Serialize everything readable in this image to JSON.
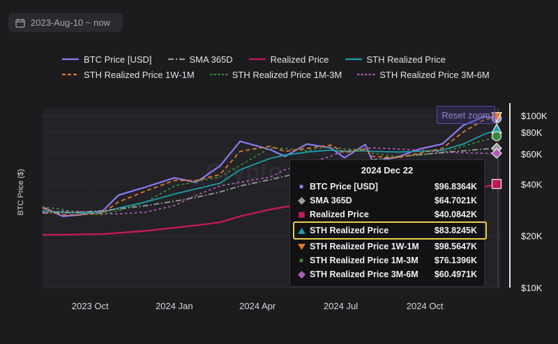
{
  "date_range": {
    "label": "2023-Aug-10 ~ now"
  },
  "reset_zoom": "Reset zoom",
  "watermark": "Crypto",
  "legend_rows": [
    [
      {
        "name": "BTC Price [USD]",
        "color": "#8b7df0",
        "style": "solid"
      },
      {
        "name": "SMA 365D",
        "color": "#9a9a9a",
        "style": "dashdot"
      },
      {
        "name": "Realized Price",
        "color": "#c2185b",
        "style": "solid"
      },
      {
        "name": "STH Realized Price",
        "color": "#1b9fa8",
        "style": "solid"
      }
    ],
    [
      {
        "name": "STH Realized Price 1W-1M",
        "color": "#e07b2a",
        "style": "dashed"
      },
      {
        "name": "STH Realized Price 1M-3M",
        "color": "#3a8a3a",
        "style": "dotted"
      },
      {
        "name": "STH Realized Price 3M-6M",
        "color": "#b05ab5",
        "style": "dotted"
      }
    ]
  ],
  "tooltip": {
    "title": "2024 Dec 22",
    "rows": [
      {
        "name": "BTC Price [USD]",
        "value": "$96.8364K",
        "marker": "dot",
        "color": "#8b7df0"
      },
      {
        "name": "SMA 365D",
        "value": "$64.7021K",
        "marker": "diamond",
        "color": "#9a9a9a"
      },
      {
        "name": "Realized Price",
        "value": "$40.0842K",
        "marker": "square",
        "color": "#c2185b"
      },
      {
        "name": "STH Realized Price",
        "value": "$83.8245K",
        "marker": "triangle-up",
        "color": "#1b9fa8",
        "highlight": true
      },
      {
        "name": "STH Realized Price 1W-1M",
        "value": "$98.5647K",
        "marker": "triangle-down",
        "color": "#e07b2a"
      },
      {
        "name": "STH Realized Price 1M-3M",
        "value": "$76.1396K",
        "marker": "dot",
        "color": "#3a8a3a"
      },
      {
        "name": "STH Realized Price 3M-6M",
        "value": "$60.4971K",
        "marker": "diamond",
        "color": "#b05ab5"
      }
    ]
  },
  "chart_data": {
    "type": "line",
    "ylabel": "BTC Price ($)",
    "y_scale": "log",
    "ylim": [
      10000,
      110000
    ],
    "y_ticks": [
      {
        "value": 10000,
        "label": "$10K"
      },
      {
        "value": 20000,
        "label": "$20K"
      },
      {
        "value": 40000,
        "label": "$40K"
      },
      {
        "value": 60000,
        "label": "$60K"
      },
      {
        "value": 80000,
        "label": "$80K"
      },
      {
        "value": 100000,
        "label": "$100K"
      }
    ],
    "xlim": [
      "2023-08-10",
      "2024-12-23"
    ],
    "x_ticks": [
      {
        "date": "2023-10-01",
        "label": "2023 Oct"
      },
      {
        "date": "2024-01-01",
        "label": "2024 Jan"
      },
      {
        "date": "2024-04-01",
        "label": "2024 Apr"
      },
      {
        "date": "2024-07-01",
        "label": "2024 Jul"
      },
      {
        "date": "2024-10-01",
        "label": "2024 Oct"
      }
    ],
    "x": [
      "2023-08-10",
      "2023-09-01",
      "2023-09-20",
      "2023-10-15",
      "2023-11-01",
      "2023-12-01",
      "2024-01-01",
      "2024-01-25",
      "2024-02-20",
      "2024-03-13",
      "2024-04-15",
      "2024-05-01",
      "2024-05-25",
      "2024-06-20",
      "2024-07-05",
      "2024-07-28",
      "2024-08-05",
      "2024-09-01",
      "2024-09-25",
      "2024-10-20",
      "2024-11-12",
      "2024-12-05",
      "2024-12-22"
    ],
    "series": [
      {
        "name": "BTC Price [USD]",
        "color": "#8b7df0",
        "dash": "",
        "values": [
          29500,
          26000,
          26500,
          28000,
          34500,
          38500,
          43500,
          41000,
          51000,
          71000,
          63500,
          58000,
          68500,
          65000,
          57000,
          68000,
          54000,
          57500,
          64000,
          68500,
          88000,
          99000,
          96800
        ]
      },
      {
        "name": "SMA 365D",
        "color": "#9a9a9a",
        "dash": "8,3,2,3",
        "values": [
          27200,
          27200,
          27500,
          28000,
          28700,
          30000,
          31800,
          33500,
          36000,
          39000,
          42500,
          44500,
          47000,
          50000,
          52500,
          54500,
          55500,
          57500,
          59500,
          61000,
          62500,
          64000,
          64700
        ]
      },
      {
        "name": "Realized Price",
        "color": "#c2185b",
        "dash": "",
        "values": [
          20300,
          20300,
          20400,
          20500,
          20800,
          21400,
          22300,
          23000,
          24000,
          26000,
          28500,
          29500,
          30500,
          31000,
          31500,
          31800,
          32000,
          32500,
          33000,
          34000,
          36000,
          38500,
          40100
        ]
      },
      {
        "name": "STH Realized Price",
        "color": "#1b9fa8",
        "dash": "",
        "values": [
          28000,
          27500,
          27200,
          27500,
          29000,
          31500,
          35000,
          37500,
          40500,
          48500,
          56500,
          59000,
          61500,
          63000,
          62000,
          62500,
          62000,
          61500,
          62000,
          63000,
          68500,
          78000,
          83800
        ]
      },
      {
        "name": "STH Realized Price 1W-1M",
        "color": "#e07b2a",
        "dash": "6,4",
        "values": [
          29000,
          26500,
          26500,
          27200,
          31500,
          36500,
          42000,
          42000,
          45500,
          62000,
          66500,
          62000,
          64500,
          67500,
          61000,
          64000,
          58000,
          57000,
          60500,
          64500,
          80500,
          95000,
          98600
        ]
      },
      {
        "name": "STH Realized Price 1M-3M",
        "color": "#3a8a3a",
        "dash": "2,5",
        "values": [
          29500,
          28500,
          27000,
          26500,
          28000,
          31500,
          39000,
          41500,
          44000,
          51500,
          65000,
          64500,
          62500,
          66000,
          64000,
          63500,
          60500,
          58000,
          59000,
          61000,
          66500,
          72000,
          76100
        ]
      },
      {
        "name": "STH Realized Price 3M-6M",
        "color": "#b05ab5",
        "dash": "2,5",
        "values": [
          27500,
          27800,
          27800,
          27000,
          26800,
          27500,
          30000,
          34500,
          39000,
          41000,
          44000,
          48500,
          53000,
          58000,
          62500,
          64500,
          65000,
          64000,
          63000,
          61500,
          61000,
          60500,
          60500
        ]
      }
    ]
  }
}
